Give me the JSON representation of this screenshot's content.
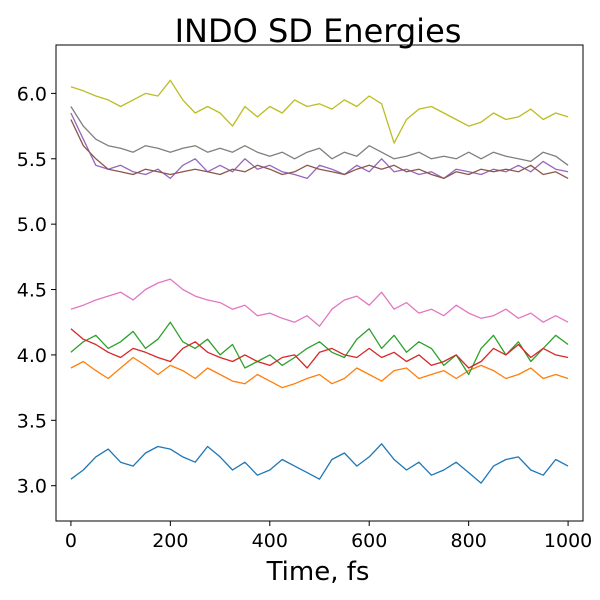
{
  "chart_data": {
    "type": "line",
    "title": "INDO SD Energies",
    "xlabel": "Time, fs",
    "ylabel": "",
    "xlim": [
      -30,
      1030
    ],
    "ylim": [
      2.73,
      6.37
    ],
    "xticks": [
      0,
      200,
      400,
      600,
      800,
      1000
    ],
    "xtick_labels": [
      "0",
      "200",
      "400",
      "600",
      "800",
      "1000"
    ],
    "yticks": [
      3.0,
      3.5,
      4.0,
      4.5,
      5.0,
      5.5,
      6.0
    ],
    "ytick_labels": [
      "3.0",
      "3.5",
      "4.0",
      "4.5",
      "5.0",
      "5.5",
      "6.0"
    ],
    "grid": false,
    "x": [
      0,
      25,
      50,
      75,
      100,
      125,
      150,
      175,
      200,
      225,
      250,
      275,
      300,
      325,
      350,
      375,
      400,
      425,
      450,
      475,
      500,
      525,
      550,
      575,
      600,
      625,
      650,
      675,
      700,
      725,
      750,
      775,
      800,
      825,
      850,
      875,
      900,
      925,
      950,
      975,
      1000
    ],
    "series": [
      {
        "color": "#1f77b4",
        "values": [
          3.05,
          3.12,
          3.22,
          3.28,
          3.18,
          3.15,
          3.25,
          3.3,
          3.28,
          3.22,
          3.18,
          3.3,
          3.22,
          3.12,
          3.18,
          3.08,
          3.12,
          3.2,
          3.15,
          3.1,
          3.05,
          3.2,
          3.25,
          3.15,
          3.22,
          3.32,
          3.2,
          3.12,
          3.18,
          3.08,
          3.12,
          3.18,
          3.1,
          3.02,
          3.15,
          3.2,
          3.22,
          3.12,
          3.08,
          3.2,
          3.15
        ]
      },
      {
        "color": "#ff7f0e",
        "values": [
          3.9,
          3.95,
          3.88,
          3.82,
          3.9,
          3.98,
          3.92,
          3.85,
          3.92,
          3.88,
          3.82,
          3.9,
          3.85,
          3.8,
          3.78,
          3.85,
          3.8,
          3.75,
          3.78,
          3.82,
          3.85,
          3.78,
          3.82,
          3.9,
          3.85,
          3.8,
          3.88,
          3.9,
          3.82,
          3.85,
          3.88,
          3.82,
          3.88,
          3.92,
          3.88,
          3.82,
          3.85,
          3.9,
          3.82,
          3.85,
          3.82
        ]
      },
      {
        "color": "#2ca02c",
        "values": [
          4.02,
          4.1,
          4.15,
          4.05,
          4.1,
          4.18,
          4.05,
          4.12,
          4.25,
          4.1,
          4.05,
          4.12,
          4.0,
          4.08,
          3.9,
          3.95,
          4.0,
          3.92,
          3.98,
          4.05,
          4.1,
          4.02,
          3.98,
          4.12,
          4.2,
          4.05,
          4.15,
          4.02,
          4.1,
          4.05,
          3.92,
          4.0,
          3.85,
          4.05,
          4.15,
          4.0,
          4.1,
          3.95,
          4.05,
          4.15,
          4.08
        ]
      },
      {
        "color": "#d62728",
        "values": [
          4.2,
          4.12,
          4.08,
          4.02,
          3.98,
          4.05,
          4.02,
          3.98,
          3.95,
          4.05,
          4.1,
          4.02,
          3.98,
          3.95,
          4.0,
          3.95,
          3.92,
          3.98,
          4.0,
          3.9,
          4.02,
          4.05,
          4.0,
          3.98,
          4.05,
          3.98,
          4.02,
          3.95,
          4.0,
          3.92,
          3.95,
          4.0,
          3.9,
          3.95,
          4.05,
          4.0,
          4.08,
          3.98,
          4.05,
          4.0,
          3.98
        ]
      },
      {
        "color": "#9467bd",
        "values": [
          5.85,
          5.65,
          5.45,
          5.42,
          5.45,
          5.4,
          5.38,
          5.42,
          5.35,
          5.45,
          5.5,
          5.4,
          5.45,
          5.4,
          5.5,
          5.42,
          5.45,
          5.4,
          5.38,
          5.35,
          5.45,
          5.42,
          5.38,
          5.45,
          5.4,
          5.5,
          5.4,
          5.42,
          5.38,
          5.4,
          5.35,
          5.42,
          5.4,
          5.38,
          5.42,
          5.4,
          5.45,
          5.4,
          5.48,
          5.42,
          5.4
        ]
      },
      {
        "color": "#8c564b",
        "values": [
          5.8,
          5.6,
          5.5,
          5.42,
          5.4,
          5.38,
          5.42,
          5.4,
          5.38,
          5.4,
          5.42,
          5.4,
          5.38,
          5.42,
          5.4,
          5.45,
          5.42,
          5.38,
          5.4,
          5.45,
          5.42,
          5.4,
          5.38,
          5.42,
          5.45,
          5.42,
          5.45,
          5.4,
          5.42,
          5.38,
          5.35,
          5.4,
          5.38,
          5.42,
          5.4,
          5.42,
          5.4,
          5.45,
          5.38,
          5.4,
          5.35
        ]
      },
      {
        "color": "#e377c2",
        "values": [
          4.35,
          4.38,
          4.42,
          4.45,
          4.48,
          4.42,
          4.5,
          4.55,
          4.58,
          4.5,
          4.45,
          4.42,
          4.4,
          4.35,
          4.38,
          4.3,
          4.32,
          4.28,
          4.25,
          4.3,
          4.22,
          4.35,
          4.42,
          4.45,
          4.38,
          4.48,
          4.35,
          4.4,
          4.32,
          4.35,
          4.3,
          4.38,
          4.32,
          4.28,
          4.3,
          4.35,
          4.28,
          4.32,
          4.25,
          4.3,
          4.25
        ]
      },
      {
        "color": "#7f7f7f",
        "values": [
          5.9,
          5.75,
          5.65,
          5.6,
          5.58,
          5.55,
          5.6,
          5.58,
          5.55,
          5.58,
          5.6,
          5.55,
          5.58,
          5.55,
          5.6,
          5.55,
          5.52,
          5.55,
          5.5,
          5.55,
          5.58,
          5.5,
          5.55,
          5.52,
          5.6,
          5.55,
          5.5,
          5.52,
          5.55,
          5.5,
          5.52,
          5.5,
          5.55,
          5.5,
          5.55,
          5.52,
          5.5,
          5.48,
          5.55,
          5.52,
          5.45
        ]
      },
      {
        "color": "#bcbd22",
        "values": [
          6.05,
          6.02,
          5.98,
          5.95,
          5.9,
          5.95,
          6.0,
          5.98,
          6.1,
          5.95,
          5.85,
          5.9,
          5.85,
          5.75,
          5.9,
          5.82,
          5.9,
          5.85,
          5.95,
          5.9,
          5.92,
          5.88,
          5.95,
          5.9,
          5.98,
          5.92,
          5.62,
          5.8,
          5.88,
          5.9,
          5.85,
          5.8,
          5.75,
          5.78,
          5.85,
          5.8,
          5.82,
          5.88,
          5.8,
          5.85,
          5.82
        ]
      }
    ]
  }
}
